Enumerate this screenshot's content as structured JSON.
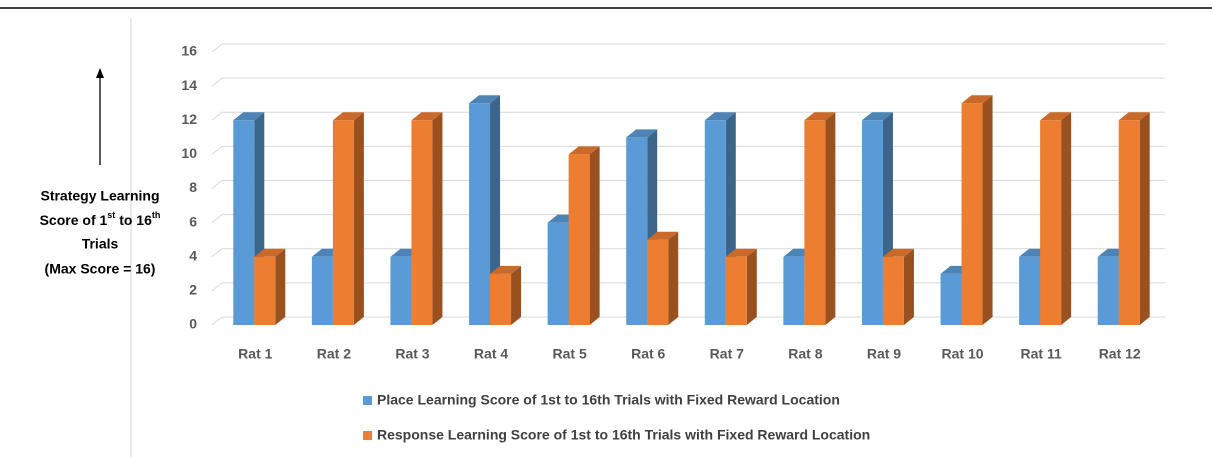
{
  "chart_data": {
    "type": "bar3d",
    "categories": [
      "Rat 1",
      "Rat 2",
      "Rat 3",
      "Rat 4",
      "Rat 5",
      "Rat 6",
      "Rat 7",
      "Rat 8",
      "Rat 9",
      "Rat 10",
      "Rat 11",
      "Rat 12"
    ],
    "series": [
      {
        "name": "Place Learning Score of 1st to 16th Trials with Fixed Reward Location",
        "color": "#5b9bd5",
        "values": [
          12,
          4,
          4,
          13,
          6,
          11,
          12,
          4,
          12,
          3,
          4,
          4
        ]
      },
      {
        "name": "Response Learning Score of 1st to 16th Trials with Fixed Reward Location",
        "color": "#ed7d31",
        "values": [
          4,
          12,
          12,
          3,
          10,
          5,
          4,
          12,
          4,
          13,
          12,
          12
        ]
      }
    ],
    "ylim": [
      0,
      16
    ],
    "yticks": [
      0,
      2,
      4,
      6,
      8,
      10,
      12,
      14,
      16
    ],
    "grid": true,
    "ylabel_lines": [
      "Strategy Learning",
      [
        {
          "text": "Score of 1"
        },
        {
          "text": "st",
          "sup": true
        },
        {
          "text": " to 16"
        },
        {
          "text": "th",
          "sup": true
        }
      ],
      "Trials",
      "(Max Score = 16)"
    ]
  }
}
